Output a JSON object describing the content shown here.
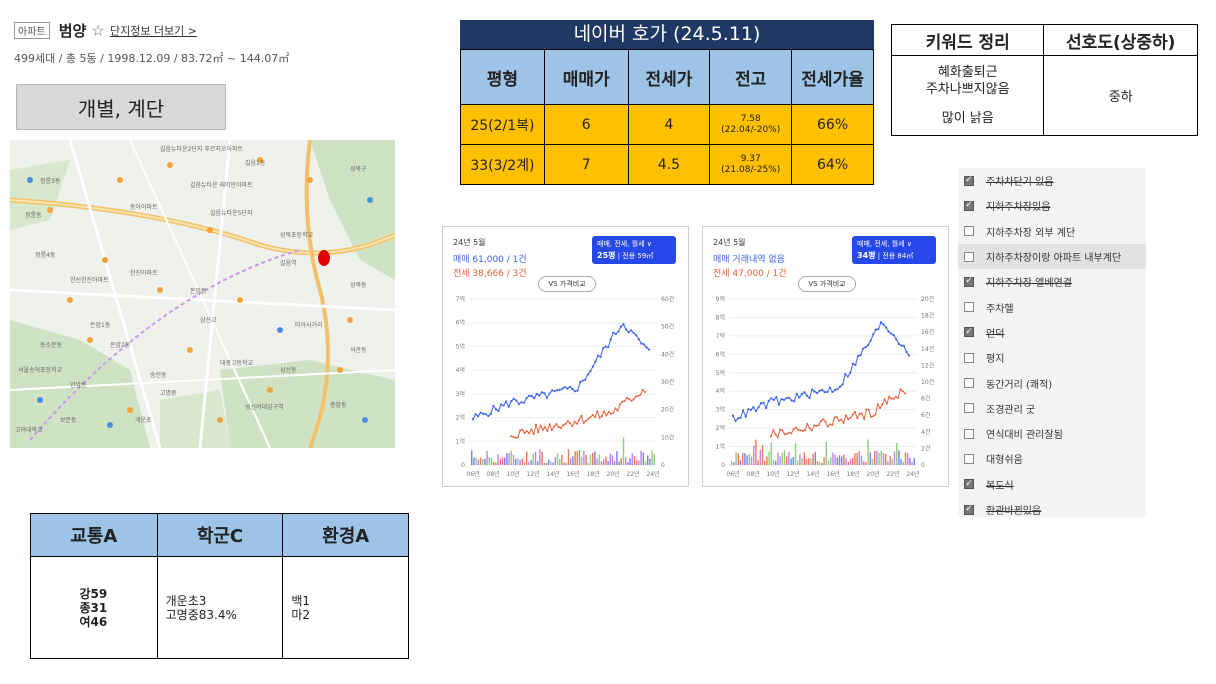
{
  "header": {
    "tag": "아파트",
    "name": "범양",
    "star": "☆",
    "link": "단지정보 더보기 >",
    "info": "499세대 / 총 5동 / 1998.12.09 / 83.72㎡ ~ 144.07㎡"
  },
  "type_label": "개별, 계단",
  "map": {
    "labels": [
      "길음뉴타운2단지 푸르지오아파트",
      "길음1동",
      "성북구",
      "길음뉴타운 래미안아파트",
      "정릉3동",
      "삼선동",
      "동아아파트",
      "한신한진아파트",
      "정릉동",
      "성북동",
      "길음뉴타운5단지",
      "정릉4동",
      "돈암동",
      "한진아파트",
      "돈암2동",
      "석관동",
      "성신여대입구역",
      "고명중",
      "개운초",
      "대광고등학교",
      "안암동",
      "동소문동",
      "삼선교",
      "고려대학교",
      "보문동",
      "돈암1동",
      "종암동",
      "길음역",
      "미아사거리",
      "숭인동",
      "서울송덕초등학교",
      "성북초등학교"
    ],
    "pin_color": "#e10000"
  },
  "naver": {
    "title": "네이버 호가 (24.5.11)",
    "headers": [
      "평형",
      "매매가",
      "전세가",
      "전고",
      "전세가율"
    ],
    "rows": [
      {
        "type": "25(2/1복)",
        "sale": "6",
        "jeonse": "4",
        "high1": "7.58",
        "high2": "(22.04/-20%)",
        "ratio": "66%"
      },
      {
        "type": "33(3/2계)",
        "sale": "7",
        "jeonse": "4.5",
        "high1": "9.37",
        "high2": "(21.08/-25%)",
        "ratio": "64%"
      }
    ]
  },
  "keyword": {
    "headers": [
      "키워드 정리",
      "선호도(상중하)"
    ],
    "line1": "혜화출퇴근",
    "line2": "주차나쁘지않음",
    "line3": "많이 낡음",
    "preference": "중하"
  },
  "checks": [
    {
      "label": "주차차단기 있음",
      "checked": true,
      "strike": true
    },
    {
      "label": "지하주차장있음",
      "checked": true,
      "strike": true
    },
    {
      "label": "지하주차장 외부 계단",
      "checked": false,
      "strike": false
    },
    {
      "label": "지하주차장이랑 아파트 내부계단",
      "checked": false,
      "strike": false,
      "highlight": true
    },
    {
      "label": "지하주차장 엘베연결",
      "checked": true,
      "strike": true
    },
    {
      "label": "주차헬",
      "checked": false,
      "strike": false
    },
    {
      "label": "언덕",
      "checked": true,
      "strike": true
    },
    {
      "label": "평지",
      "checked": false,
      "strike": false
    },
    {
      "label": "동간거리 (쾌적)",
      "checked": false,
      "strike": false
    },
    {
      "label": "조경관리 굿",
      "checked": false,
      "strike": false
    },
    {
      "label": "연식대비 관리잘됨",
      "checked": false,
      "strike": false
    },
    {
      "label": "대형쉬움",
      "checked": false,
      "strike": false
    },
    {
      "label": "복도식",
      "checked": true,
      "strike": true
    },
    {
      "label": "환관바뀐있음",
      "checked": true,
      "strike": true
    }
  ],
  "charts": [
    {
      "year": "24년 5월",
      "line1": "매매 61,000 / 1건",
      "line2": "전세 38,666 / 3건",
      "badge_top": "매매, 전세, 월세 ∨",
      "badge_py": "25평",
      "badge_sub": "| 전용 59㎡",
      "vs": "VS 가격비교",
      "y_left": [
        "7억",
        "6억",
        "5억",
        "4억",
        "3억",
        "2억",
        "1억",
        "0"
      ],
      "y_right": [
        "60건",
        "50건",
        "40건",
        "30건",
        "20건",
        "10건",
        "0"
      ],
      "x": [
        "06년",
        "08년",
        "10년",
        "12년",
        "14년",
        "16년",
        "18년",
        "20년",
        "22년",
        "24년"
      ],
      "sale_color": "#3b63e8",
      "jeonse_color": "#e8623a"
    },
    {
      "year": "24년 5월",
      "line1": "매매 거래내역 없음",
      "line2": "전세 47,000 / 1건",
      "badge_top": "매매, 전세, 월세 ∨",
      "badge_py": "34평",
      "badge_sub": "| 전용 84㎡",
      "vs": "VS 가격비교",
      "y_left": [
        "9억",
        "8억",
        "7억",
        "6억",
        "5억",
        "4억",
        "3억",
        "2억",
        "1억",
        "0"
      ],
      "y_right": [
        "20건",
        "18건",
        "16건",
        "14건",
        "12건",
        "10건",
        "8건",
        "6건",
        "4건",
        "2건",
        "0"
      ],
      "x": [
        "06년",
        "08년",
        "10년",
        "12년",
        "14년",
        "16년",
        "18년",
        "20년",
        "22년",
        "24년"
      ],
      "sale_color": "#3b63e8",
      "jeonse_color": "#e8623a"
    }
  ],
  "score": {
    "headers": [
      "교통A",
      "학군C",
      "환경A"
    ],
    "traffic": [
      "강59",
      "종31",
      "여46"
    ],
    "school": [
      "개운초3",
      "고명중83.4%"
    ],
    "env": [
      "백1",
      "마2"
    ]
  }
}
